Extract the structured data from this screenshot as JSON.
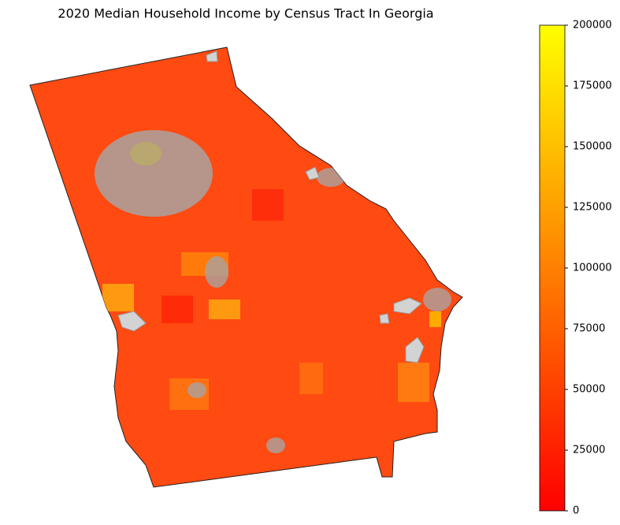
{
  "map": {
    "title": "2020 Median Household Income by Census Tract In Georgia",
    "colorbar": {
      "range": [
        0,
        200000
      ],
      "ticks": [
        0,
        25000,
        50000,
        75000,
        100000,
        125000,
        150000,
        175000,
        200000
      ],
      "colors": [
        "#ff0000",
        "#ff8000",
        "#ffff00"
      ]
    }
  }
}
